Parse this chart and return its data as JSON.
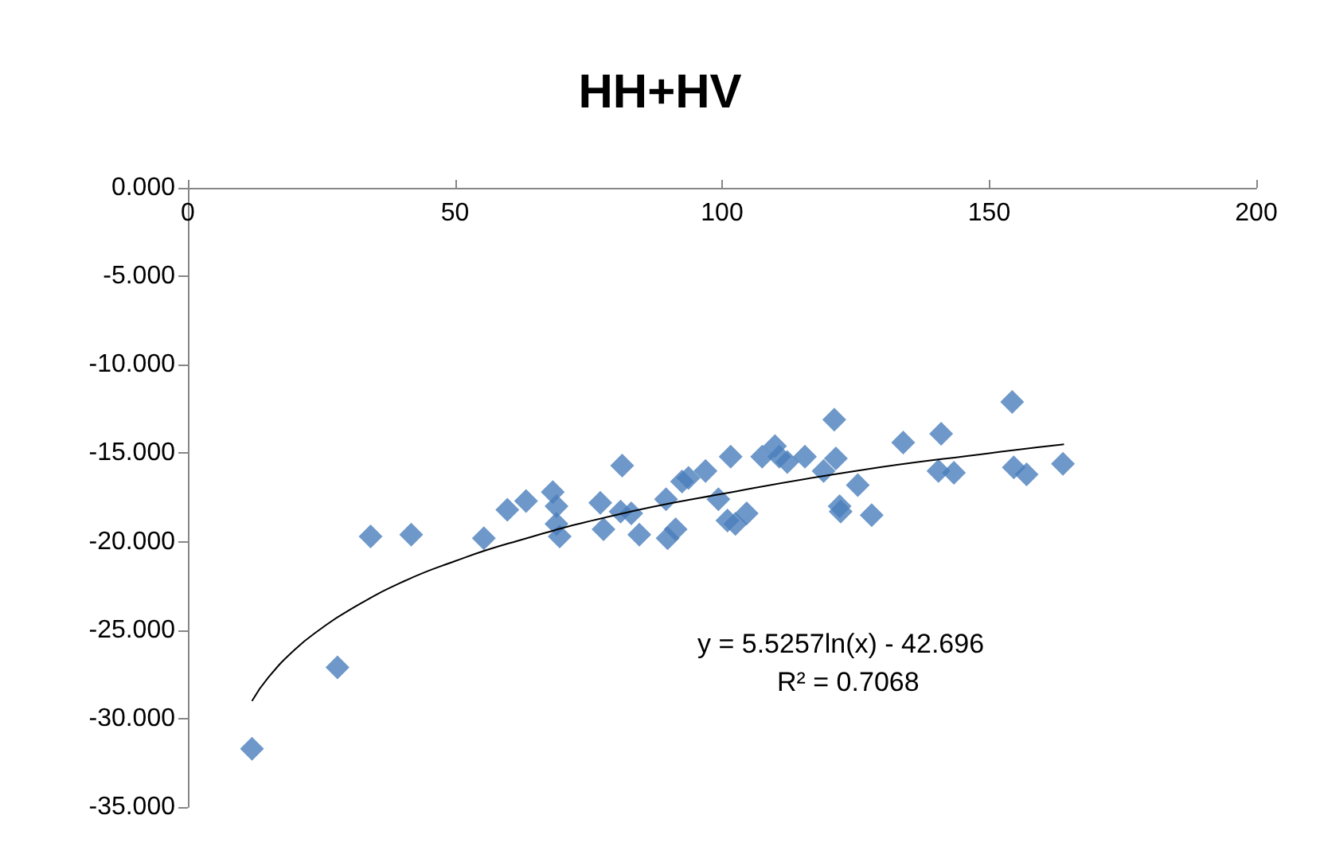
{
  "chart_data": {
    "type": "scatter",
    "title": "HH+HV",
    "marker": "diamond",
    "grid": false,
    "xlim": [
      0,
      200
    ],
    "xticks": [
      0,
      50,
      100,
      150,
      200
    ],
    "ylim": [
      -35,
      0
    ],
    "yticks": [
      {
        "value": 0,
        "label": "0.000"
      },
      {
        "value": -5,
        "label": "-5.000"
      },
      {
        "value": -10,
        "label": "-10.000"
      },
      {
        "value": -15,
        "label": "-15.000"
      },
      {
        "value": -20,
        "label": "-20.000"
      },
      {
        "value": -25,
        "label": "-25.000"
      },
      {
        "value": -30,
        "label": "-30.000"
      },
      {
        "value": -35,
        "label": "-35.000"
      }
    ],
    "annotations": [
      "y = 5.5257ln(x) - 42.696",
      "R² = 0.7068"
    ],
    "series": [
      {
        "color": "#4a7ebb",
        "x": [
          12,
          28,
          34.2,
          41.8,
          55.4,
          59.8,
          63.3,
          68.3,
          69,
          69.6,
          69,
          77.2,
          77.8,
          81.3,
          81,
          83,
          84.5,
          89.8,
          91.3,
          89.5,
          92.5,
          93.7,
          96.9,
          99.3,
          101,
          101.6,
          102.5,
          104.6,
          107.5,
          109.9,
          110.7,
          112.2,
          115.5,
          119,
          121,
          121.3,
          122,
          122.2,
          125.4,
          128,
          133.9,
          141,
          140.5,
          143.4,
          154.3,
          154.6,
          157,
          163.8
        ],
        "values": [
          -31.7,
          -27.1,
          -19.7,
          -19.6,
          -19.8,
          -18.2,
          -17.7,
          -17.2,
          -18,
          -19.7,
          -19,
          -17.8,
          -19.3,
          -15.7,
          -18.3,
          -18.4,
          -19.6,
          -19.8,
          -19.3,
          -17.6,
          -16.6,
          -16.4,
          -16,
          -17.6,
          -18.8,
          -15.2,
          -19,
          -18.4,
          -15.2,
          -14.6,
          -15.2,
          -15.5,
          -15.2,
          -16,
          -13.1,
          -15.3,
          -18,
          -18.3,
          -16.8,
          -18.5,
          -14.4,
          -13.9,
          -16,
          -16.1,
          -12.1,
          -15.8,
          -16.2,
          -15.6
        ]
      },
      {
        "type": "line",
        "color": "#000000",
        "marker": "none",
        "line_style": "solid",
        "x": [
          12,
          15,
          20,
          25,
          30,
          40,
          50,
          60,
          80,
          100,
          125,
          150,
          164
        ],
        "values": [
          -29,
          -27.7,
          -26.1,
          -24.9,
          -23.9,
          -22.3,
          -21.1,
          -20.1,
          -18.5,
          -17.3,
          -16,
          -15,
          -14.5
        ]
      }
    ]
  }
}
